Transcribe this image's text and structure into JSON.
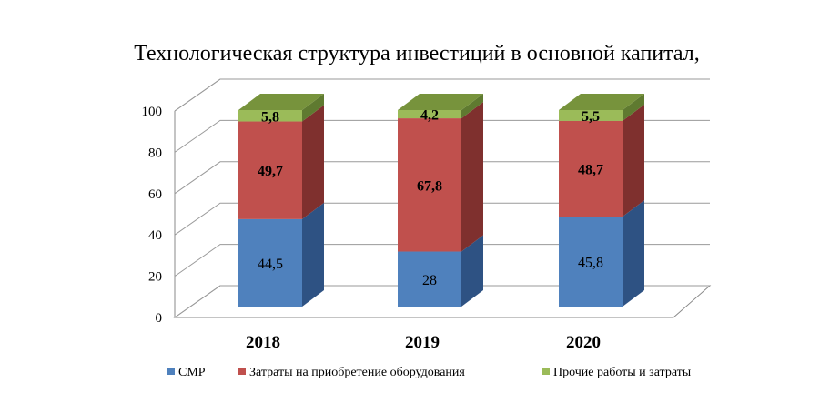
{
  "chart_data": {
    "type": "bar",
    "stacked": true,
    "three_d": true,
    "title": "Технологическая структура инвестиций в основной капитал,",
    "xlabel": "",
    "ylabel": "",
    "ylim": [
      0,
      100
    ],
    "yticks": [
      "0",
      "20",
      "40",
      "60",
      "80",
      "100"
    ],
    "grid": true,
    "legend_position": "bottom",
    "categories": [
      "2018",
      "2019",
      "2020"
    ],
    "series": [
      {
        "name": "СМР",
        "values": [
          44.5,
          28,
          45.8
        ],
        "labels": [
          "44,5",
          "28",
          "45,8"
        ],
        "label_bold": false,
        "color": "#4F81BD",
        "side_color": "#2E5283",
        "top_color": "#6F9AD0"
      },
      {
        "name": "Затраты на приобретение оборудования",
        "values": [
          49.7,
          67.8,
          48.7
        ],
        "labels": [
          "49,7",
          "67,8",
          "48,7"
        ],
        "label_bold": true,
        "color": "#C0504D",
        "side_color": "#7F302E",
        "top_color": "#D17572"
      },
      {
        "name": "Прочие работы и затраты",
        "values": [
          5.8,
          4.2,
          5.5
        ],
        "labels": [
          "5,8",
          "4,2",
          "5,5"
        ],
        "label_bold": true,
        "color": "#9BBB59",
        "side_color": "#5F7A30",
        "top_color": "#77933C"
      }
    ]
  }
}
